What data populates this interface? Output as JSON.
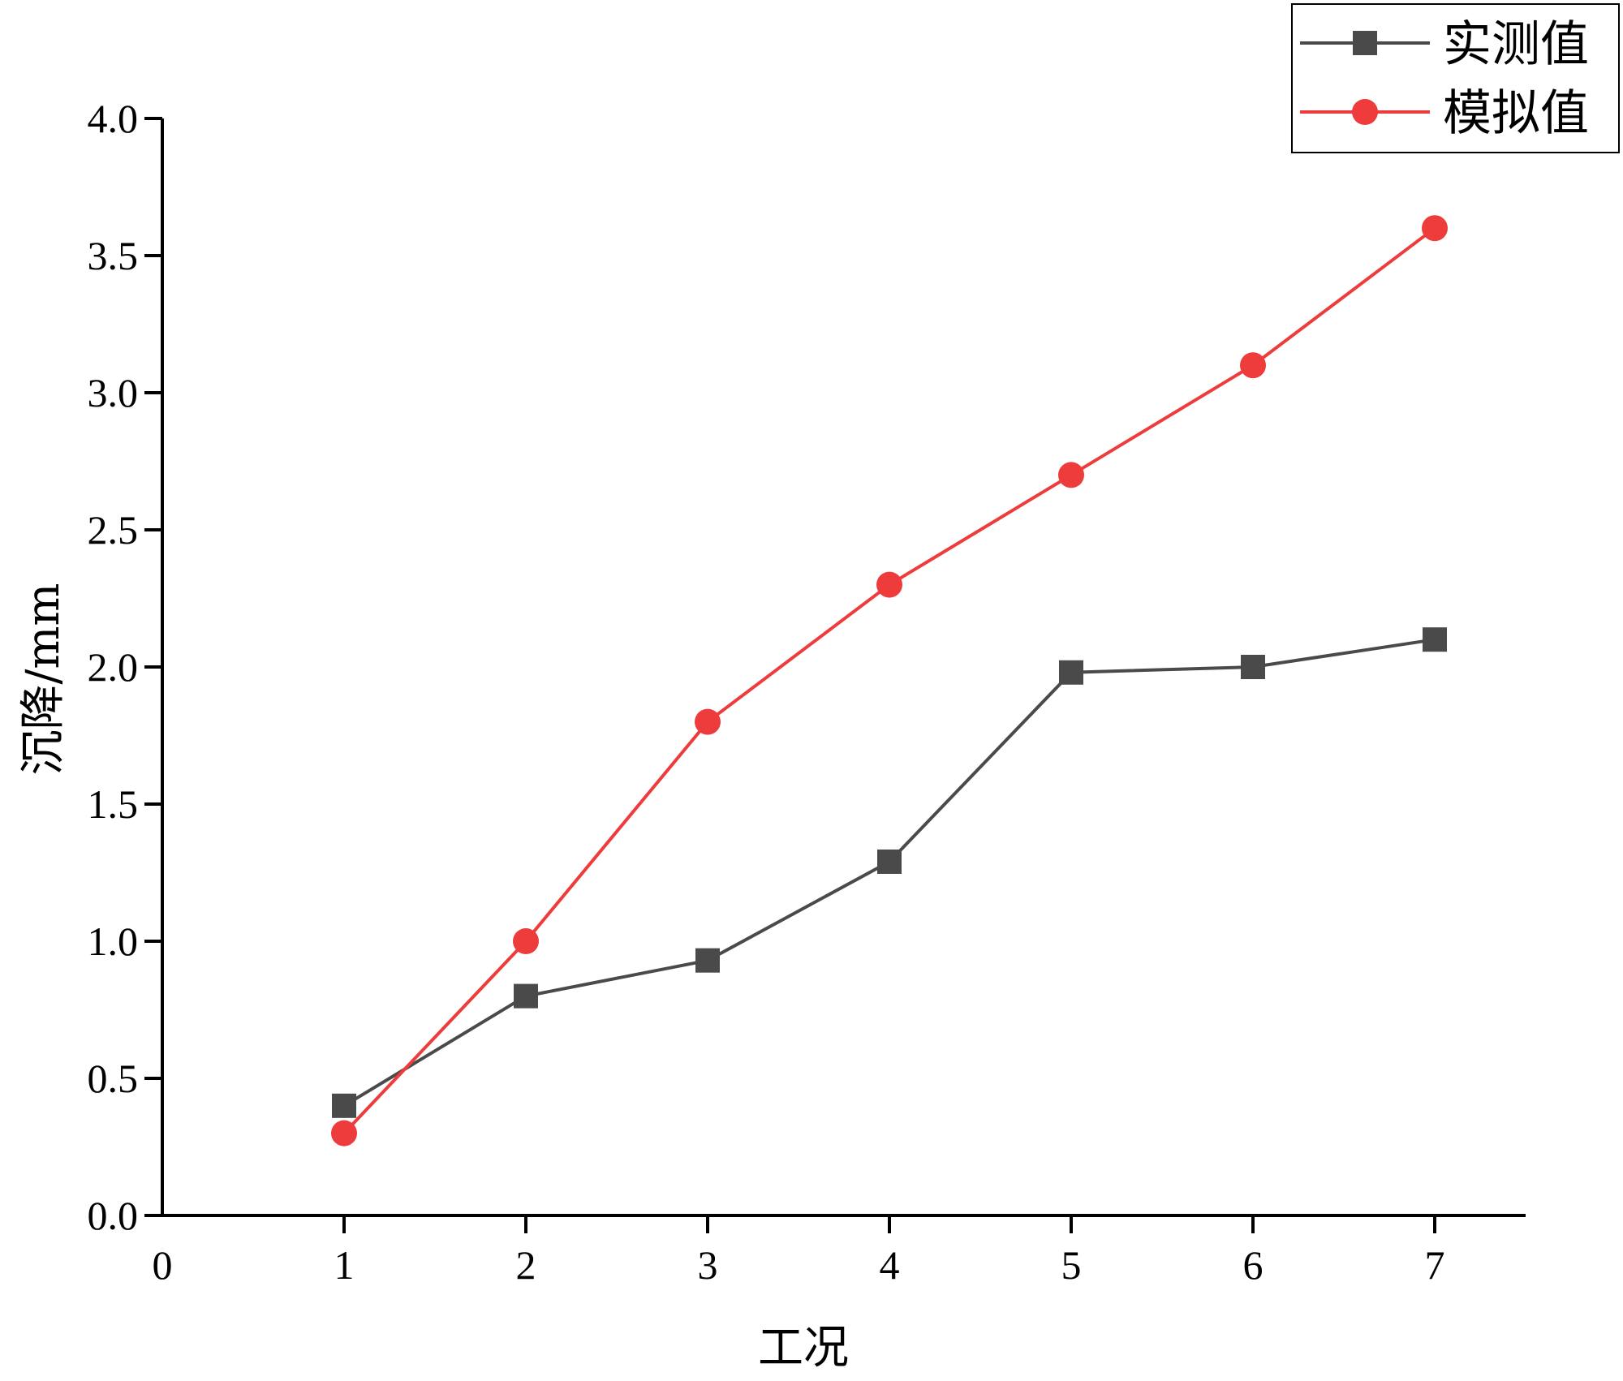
{
  "chart_data": {
    "type": "line",
    "title": "",
    "xlabel": "工况",
    "ylabel": "沉降/mm",
    "xlim": [
      0,
      7.5
    ],
    "ylim": [
      0,
      4.0
    ],
    "x_ticks": [
      0,
      1,
      2,
      3,
      4,
      5,
      6,
      7
    ],
    "x_tick_labels": [
      "0",
      "1",
      "2",
      "3",
      "4",
      "5",
      "6",
      "7"
    ],
    "y_ticks": [
      0,
      0.5,
      1.0,
      1.5,
      2.0,
      2.5,
      3.0,
      3.5,
      4.0
    ],
    "y_tick_labels": [
      "0.0",
      "0.5",
      "1.0",
      "1.5",
      "2.0",
      "2.5",
      "3.0",
      "3.5",
      "4.0"
    ],
    "x": [
      1,
      2,
      3,
      4,
      5,
      6,
      7
    ],
    "grid": false,
    "legend_position": "top-right",
    "series": [
      {
        "name": "实测值",
        "marker": "square",
        "color": "#4a4a4a",
        "values": [
          0.4,
          0.8,
          0.93,
          1.29,
          1.98,
          2.0,
          2.1
        ]
      },
      {
        "name": "模拟值",
        "marker": "circle",
        "color": "#ee3b3b",
        "values": [
          0.3,
          1.0,
          1.8,
          2.3,
          2.7,
          3.1,
          3.6
        ]
      }
    ]
  }
}
